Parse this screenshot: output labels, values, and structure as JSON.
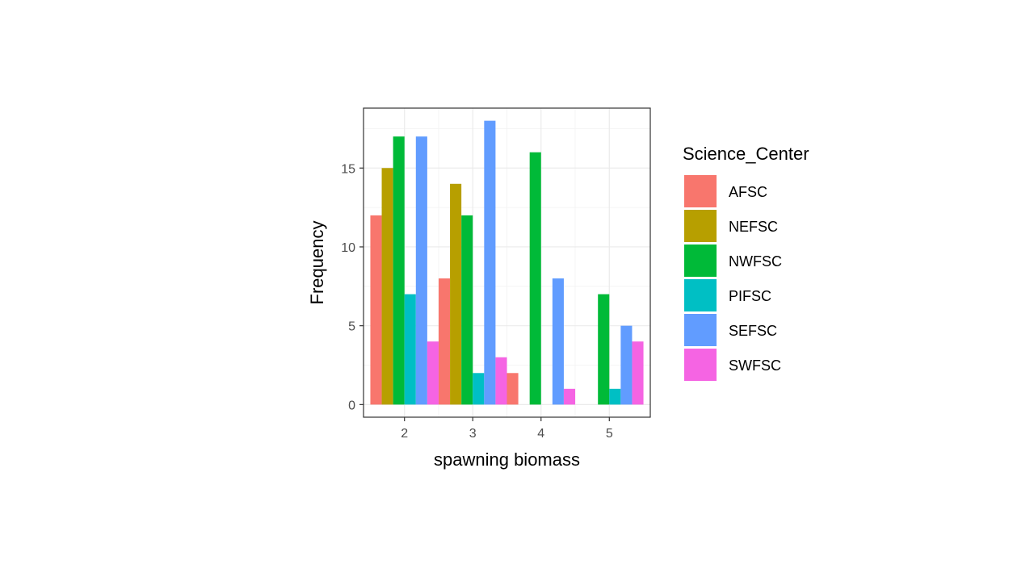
{
  "chart_data": {
    "type": "bar",
    "xlabel": "spawning biomass",
    "ylabel": "Frequency",
    "categories": [
      "2",
      "3",
      "4",
      "5"
    ],
    "ylim": [
      -0.8,
      18.8
    ],
    "y_ticks": [
      0,
      5,
      10,
      15
    ],
    "legend_title": "Science_Center",
    "legend_position": "right",
    "grid": true,
    "series": [
      {
        "name": "AFSC",
        "color": "#F8766D",
        "values": [
          12,
          8,
          2,
          0
        ]
      },
      {
        "name": "NEFSC",
        "color": "#B79F00",
        "values": [
          15,
          14,
          0,
          0
        ]
      },
      {
        "name": "NWFSC",
        "color": "#00BA38",
        "values": [
          17,
          12,
          16,
          7
        ]
      },
      {
        "name": "PIFSC",
        "color": "#00BFC4",
        "values": [
          7,
          2,
          0,
          1
        ]
      },
      {
        "name": "SEFSC",
        "color": "#619CFF",
        "values": [
          17,
          18,
          8,
          5
        ]
      },
      {
        "name": "SWFSC",
        "color": "#F564E3",
        "values": [
          4,
          3,
          1,
          4
        ]
      }
    ]
  }
}
